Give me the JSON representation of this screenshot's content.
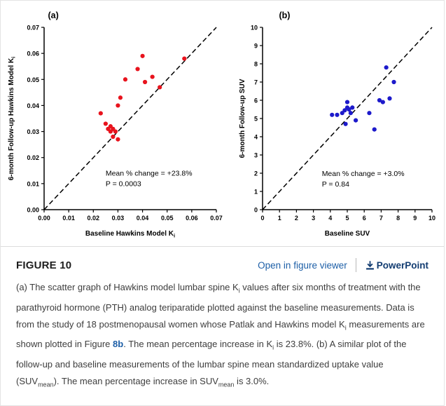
{
  "figure": {
    "panels": [
      {
        "label": "(a)"
      },
      {
        "label": "(b)"
      }
    ]
  },
  "chart_data": [
    {
      "type": "scatter",
      "panel": "(a)",
      "xlabel": [
        {
          "t": "Baseline Hawkins Model K"
        },
        {
          "t": "i",
          "sub": true
        }
      ],
      "ylabel": [
        {
          "t": "6-month Follow-up Hawkins Model K"
        },
        {
          "t": "i",
          "sub": true
        }
      ],
      "xlim": [
        0,
        0.07
      ],
      "ylim": [
        0,
        0.07
      ],
      "xticks": [
        {
          "v": 0.0,
          "label": "0.00"
        },
        {
          "v": 0.01,
          "label": "0.01"
        },
        {
          "v": 0.02,
          "label": "0.02"
        },
        {
          "v": 0.03,
          "label": "0.03"
        },
        {
          "v": 0.04,
          "label": "0.04"
        },
        {
          "v": 0.05,
          "label": "0.05"
        },
        {
          "v": 0.06,
          "label": "0.06"
        },
        {
          "v": 0.07,
          "label": "0.07"
        }
      ],
      "yticks": [
        {
          "v": 0.0,
          "label": "0.00"
        },
        {
          "v": 0.01,
          "label": "0.01"
        },
        {
          "v": 0.02,
          "label": "0.02"
        },
        {
          "v": 0.03,
          "label": "0.03"
        },
        {
          "v": 0.04,
          "label": "0.04"
        },
        {
          "v": 0.05,
          "label": "0.05"
        },
        {
          "v": 0.06,
          "label": "0.06"
        },
        {
          "v": 0.07,
          "label": "0.07"
        }
      ],
      "identity_line": [
        [
          0,
          0
        ],
        [
          0.07,
          0.07
        ]
      ],
      "point_color": "#e8131d",
      "points": [
        [
          0.023,
          0.037
        ],
        [
          0.03,
          0.04
        ],
        [
          0.031,
          0.043
        ],
        [
          0.025,
          0.033
        ],
        [
          0.026,
          0.031
        ],
        [
          0.027,
          0.032
        ],
        [
          0.027,
          0.03
        ],
        [
          0.028,
          0.031
        ],
        [
          0.028,
          0.028
        ],
        [
          0.03,
          0.027
        ],
        [
          0.029,
          0.03
        ],
        [
          0.033,
          0.05
        ],
        [
          0.038,
          0.054
        ],
        [
          0.04,
          0.059
        ],
        [
          0.041,
          0.049
        ],
        [
          0.044,
          0.051
        ],
        [
          0.047,
          0.047
        ],
        [
          0.057,
          0.058
        ]
      ],
      "annotation": {
        "lines": [
          "Mean % change = +23.8%",
          "P = 0.0003"
        ],
        "x": 0.025,
        "y": 0.013
      }
    },
    {
      "type": "scatter",
      "panel": "(b)",
      "xlabel": [
        {
          "t": "Baseline SUV"
        }
      ],
      "ylabel": [
        {
          "t": "6-month Follow-up SUV"
        }
      ],
      "xlim": [
        0,
        10
      ],
      "ylim": [
        0,
        10
      ],
      "xticks": [
        {
          "v": 0,
          "label": "0"
        },
        {
          "v": 1,
          "label": "1"
        },
        {
          "v": 2,
          "label": "2"
        },
        {
          "v": 3,
          "label": "3"
        },
        {
          "v": 4,
          "label": "4"
        },
        {
          "v": 5,
          "label": "5"
        },
        {
          "v": 6,
          "label": "6"
        },
        {
          "v": 7,
          "label": "7"
        },
        {
          "v": 8,
          "label": "8"
        },
        {
          "v": 9,
          "label": "9"
        },
        {
          "v": 10,
          "label": "10"
        }
      ],
      "yticks": [
        {
          "v": 0,
          "label": "0"
        },
        {
          "v": 1,
          "label": "1"
        },
        {
          "v": 2,
          "label": "2"
        },
        {
          "v": 3,
          "label": "3"
        },
        {
          "v": 4,
          "label": "4"
        },
        {
          "v": 5,
          "label": "5"
        },
        {
          "v": 6,
          "label": "6"
        },
        {
          "v": 7,
          "label": "7"
        },
        {
          "v": 8,
          "label": "8"
        },
        {
          "v": 9,
          "label": "9"
        },
        {
          "v": 10,
          "label": "10"
        }
      ],
      "identity_line": [
        [
          0,
          0
        ],
        [
          10,
          10
        ]
      ],
      "point_color": "#1d1acb",
      "points": [
        [
          4.1,
          5.2
        ],
        [
          4.4,
          5.2
        ],
        [
          4.7,
          5.3
        ],
        [
          4.85,
          5.45
        ],
        [
          5.0,
          5.6
        ],
        [
          5.0,
          5.9
        ],
        [
          5.1,
          5.5
        ],
        [
          5.2,
          5.3
        ],
        [
          5.3,
          5.6
        ],
        [
          4.9,
          4.7
        ],
        [
          5.5,
          4.9
        ],
        [
          6.3,
          5.3
        ],
        [
          6.6,
          4.4
        ],
        [
          7.1,
          5.9
        ],
        [
          7.5,
          6.1
        ],
        [
          7.75,
          7.0
        ],
        [
          7.3,
          7.8
        ],
        [
          6.9,
          6.0
        ]
      ],
      "annotation": {
        "lines": [
          "Mean % change = +3.0%",
          "P = 0.84"
        ],
        "x": 3.5,
        "y": 1.85
      }
    }
  ],
  "caption": {
    "title": "FIGURE 10",
    "open_in_figure_viewer": "Open in figure viewer",
    "powerpoint": "PowerPoint",
    "segments": [
      {
        "t": "(a) The scatter graph of Hawkins model lumbar spine K"
      },
      {
        "t": "i",
        "sub": true
      },
      {
        "t": " values after six months of treatment with the parathyroid hormone (PTH) analog teriparatide plotted against the baseline measurements. Data is from the study of 18 postmenopausal women whose Patlak and Hawkins model K"
      },
      {
        "t": "i",
        "sub": true
      },
      {
        "t": " measurements are shown plotted in Figure "
      },
      {
        "t": "8b",
        "link": true
      },
      {
        "t": ". The mean percentage increase in K"
      },
      {
        "t": "i",
        "sub": true
      },
      {
        "t": " is 23.8%. (b) A similar plot of the follow-up and baseline measurements of the lumbar spine mean standardized uptake value (SUV"
      },
      {
        "t": "mean",
        "sub": true
      },
      {
        "t": "). The mean percentage increase in SUV"
      },
      {
        "t": "mean",
        "sub": true
      },
      {
        "t": " is 3.0%."
      }
    ]
  },
  "colors": {
    "panel_a_points": "#e8131d",
    "panel_b_points": "#1d1acb",
    "link": "#1d5fa7",
    "powerpoint_link": "#123c71"
  }
}
